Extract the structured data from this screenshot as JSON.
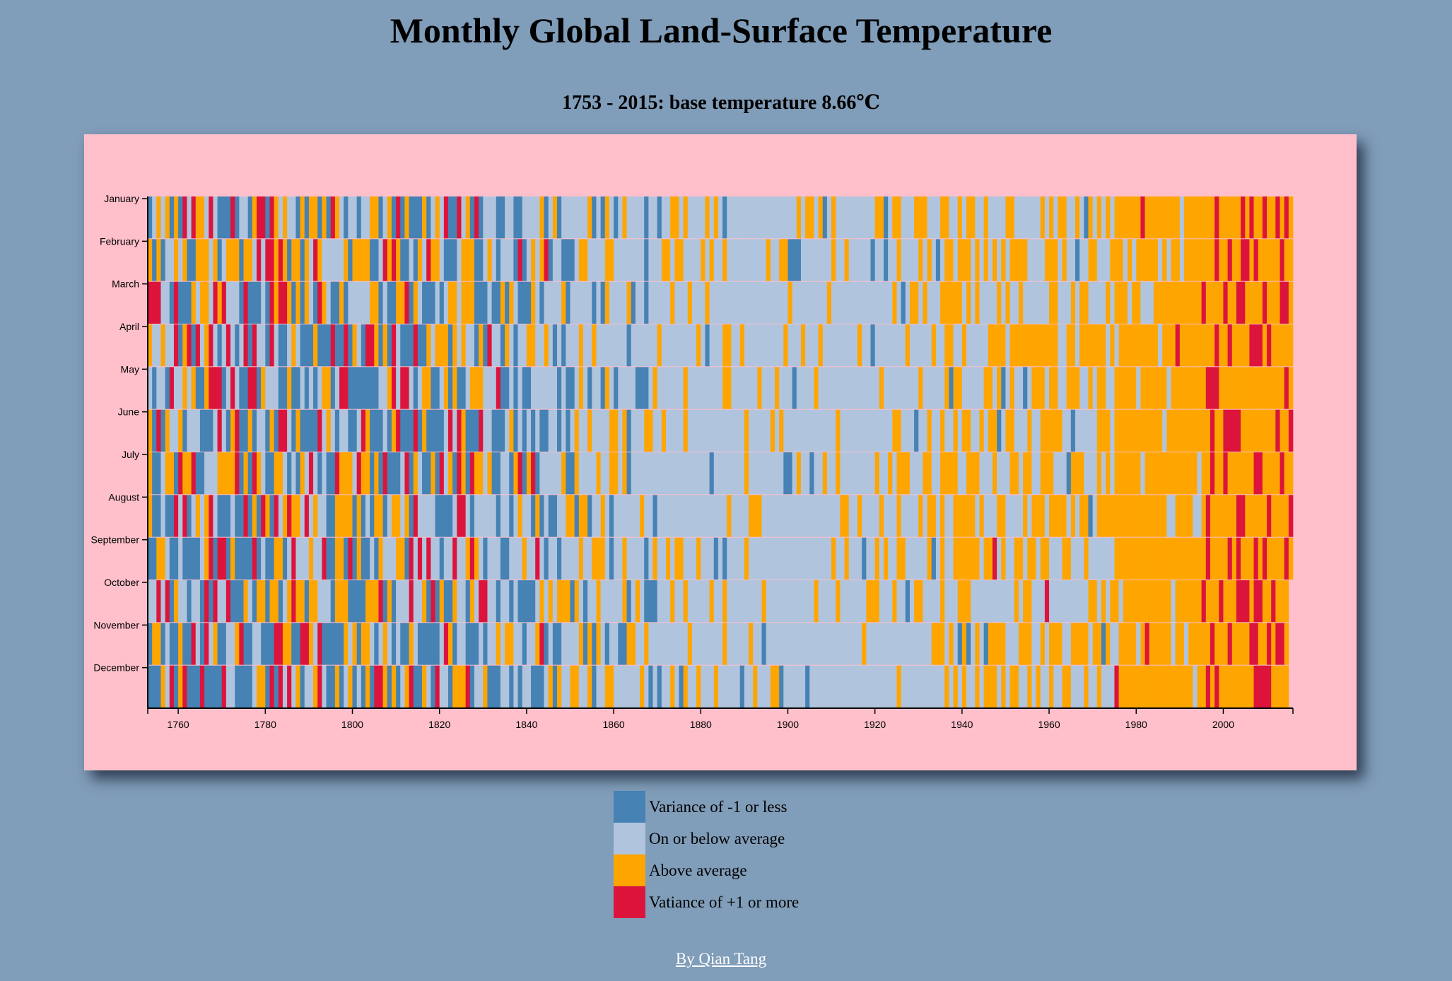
{
  "page": {
    "title": "Monthly Global Land-Surface Temperature",
    "subtitle": "1753 - 2015: base temperature 8.66℃",
    "credit": "By Qian Tang"
  },
  "colors": {
    "background": "#809db9",
    "card": "#ffc0cb",
    "very_cold": "#4682b4",
    "cool": "#b0c4de",
    "warm": "#ffa500",
    "very_warm": "#dc143c"
  },
  "legend": [
    {
      "label": "Variance of -1 or less",
      "color": "#4682b4"
    },
    {
      "label": "On or below average",
      "color": "#b0c4de"
    },
    {
      "label": "Above average",
      "color": "#ffa500"
    },
    {
      "label": "Vatiance of +1 or more",
      "color": "#dc143c"
    }
  ],
  "chart_data": {
    "type": "heatmap",
    "x_range": [
      1753,
      2015
    ],
    "x_ticks": [
      1760,
      1780,
      1800,
      1820,
      1840,
      1860,
      1880,
      1900,
      1920,
      1940,
      1960,
      1980,
      2000
    ],
    "months": [
      "January",
      "February",
      "March",
      "April",
      "May",
      "June",
      "July",
      "August",
      "September",
      "October",
      "November",
      "December"
    ],
    "categories": [
      "Variance of -1 or less",
      "On or below average",
      "Above average",
      "Vatiance of +1 or more"
    ],
    "note_cells": "categorical cell values generated by script approximating observed pattern"
  }
}
